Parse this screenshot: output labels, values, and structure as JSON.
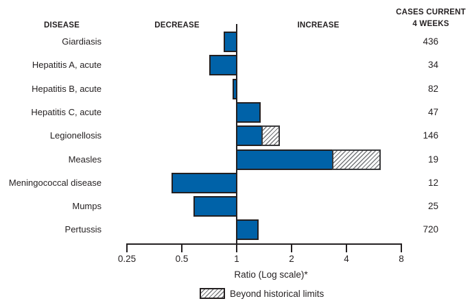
{
  "header": {
    "disease": "DISEASE",
    "decrease": "DECREASE",
    "increase": "INCREASE",
    "cases_line1": "CASES CURRENT",
    "cases_line2": "4 WEEKS"
  },
  "axis": {
    "tick_labels": [
      "0.25",
      "0.5",
      "1",
      "2",
      "4",
      "8"
    ],
    "tick_values": [
      0.25,
      0.5,
      1,
      2,
      4,
      8
    ],
    "label": "Ratio (Log scale)*"
  },
  "legend": {
    "swatch": "hatched-box",
    "label": "Beyond historical limits"
  },
  "colors": {
    "bar_fill": "#0062a8",
    "bar_border": "#231f20",
    "hatch_line": "#737578",
    "text": "#231f20"
  },
  "chart_data": {
    "type": "bar",
    "orientation": "horizontal",
    "x_scale": "log",
    "xlabel": "Ratio (Log scale)*",
    "xlim": [
      0.25,
      8
    ],
    "baseline": 1,
    "x_ticks": [
      0.25,
      0.5,
      1,
      2,
      4,
      8
    ],
    "legend": [
      "Beyond historical limits"
    ],
    "categories": [
      "Giardiasis",
      "Hepatitis A, acute",
      "Hepatitis B, acute",
      "Hepatitis C, acute",
      "Legionellosis",
      "Measles",
      "Meningococcal disease",
      "Mumps",
      "Pertussis"
    ],
    "rows": [
      {
        "disease": "Giardiasis",
        "ratio": 0.85,
        "beyond_ratio": null,
        "beyond_historical_limits": false,
        "cases_current_4_weeks": 436
      },
      {
        "disease": "Hepatitis A, acute",
        "ratio": 0.71,
        "beyond_ratio": null,
        "beyond_historical_limits": false,
        "cases_current_4_weeks": 34
      },
      {
        "disease": "Hepatitis B, acute",
        "ratio": 0.95,
        "beyond_ratio": null,
        "beyond_historical_limits": false,
        "cases_current_4_weeks": 82
      },
      {
        "disease": "Hepatitis C, acute",
        "ratio": 1.35,
        "beyond_ratio": null,
        "beyond_historical_limits": false,
        "cases_current_4_weeks": 47
      },
      {
        "disease": "Legionellosis",
        "ratio": 1.39,
        "beyond_ratio": 1.73,
        "beyond_historical_limits": true,
        "cases_current_4_weeks": 146
      },
      {
        "disease": "Measles",
        "ratio": 3.4,
        "beyond_ratio": 6.2,
        "beyond_historical_limits": true,
        "cases_current_4_weeks": 19
      },
      {
        "disease": "Meningococcal disease",
        "ratio": 0.44,
        "beyond_ratio": null,
        "beyond_historical_limits": false,
        "cases_current_4_weeks": 12
      },
      {
        "disease": "Mumps",
        "ratio": 0.58,
        "beyond_ratio": null,
        "beyond_historical_limits": false,
        "cases_current_4_weeks": 25
      },
      {
        "disease": "Pertussis",
        "ratio": 1.32,
        "beyond_ratio": null,
        "beyond_historical_limits": false,
        "cases_current_4_weeks": 720
      }
    ]
  }
}
